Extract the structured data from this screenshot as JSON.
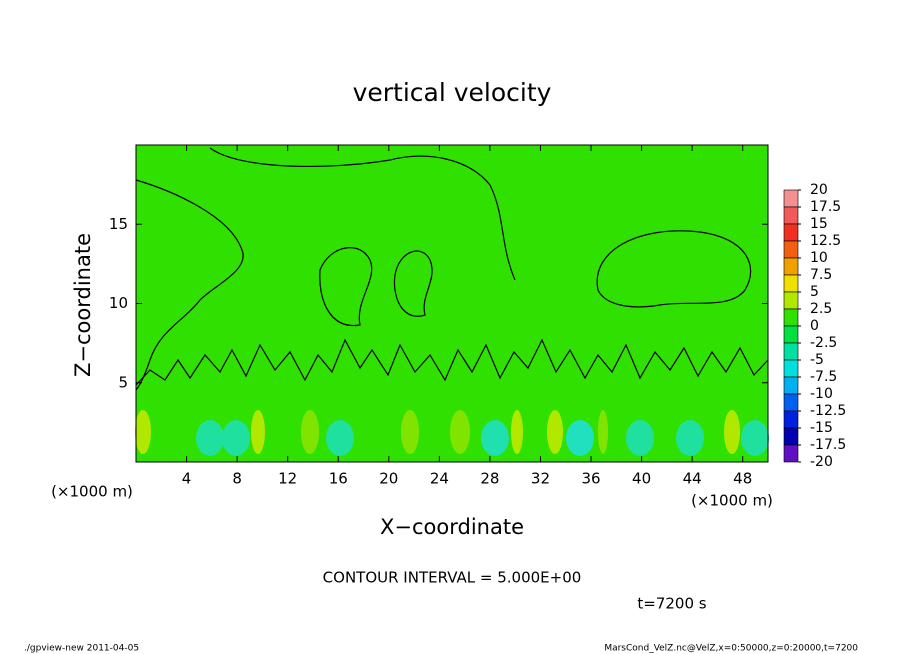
{
  "chart_data": {
    "type": "contour",
    "title": "vertical velocity",
    "xlabel": "X−coordinate",
    "ylabel": "Z−coordinate",
    "x_unit": "(×1000 m)",
    "xlim": [
      0,
      50
    ],
    "xticks": [
      4,
      8,
      12,
      16,
      20,
      24,
      28,
      32,
      36,
      40,
      44,
      48
    ],
    "ylim": [
      0,
      20
    ],
    "yticks": [
      5,
      10,
      15
    ],
    "colorbar": {
      "levels": [
        20,
        17.5,
        15,
        12.5,
        10,
        7.5,
        5,
        2.5,
        0,
        -2.5,
        -5,
        -7.5,
        -10,
        -12.5,
        -15,
        -17.5,
        -20
      ],
      "colors": [
        "#f49090",
        "#f05a5a",
        "#f03020",
        "#f06010",
        "#f0a000",
        "#f0e000",
        "#b0e800",
        "#30e000",
        "#00e040",
        "#00e0a0",
        "#00e0e0",
        "#00b0f0",
        "#0060f0",
        "#0020e0",
        "#0000b0",
        "#6010c0"
      ]
    },
    "contour_interval": "CONTOUR INTERVAL = 5.000E+00",
    "time_label": "t=7200 s",
    "footer_left": "./gpview-new   2011-04-05",
    "footer_right": "MarsCond_VelZ.nc@VelZ,x=0:50000,z=0:20000,t=7200"
  }
}
